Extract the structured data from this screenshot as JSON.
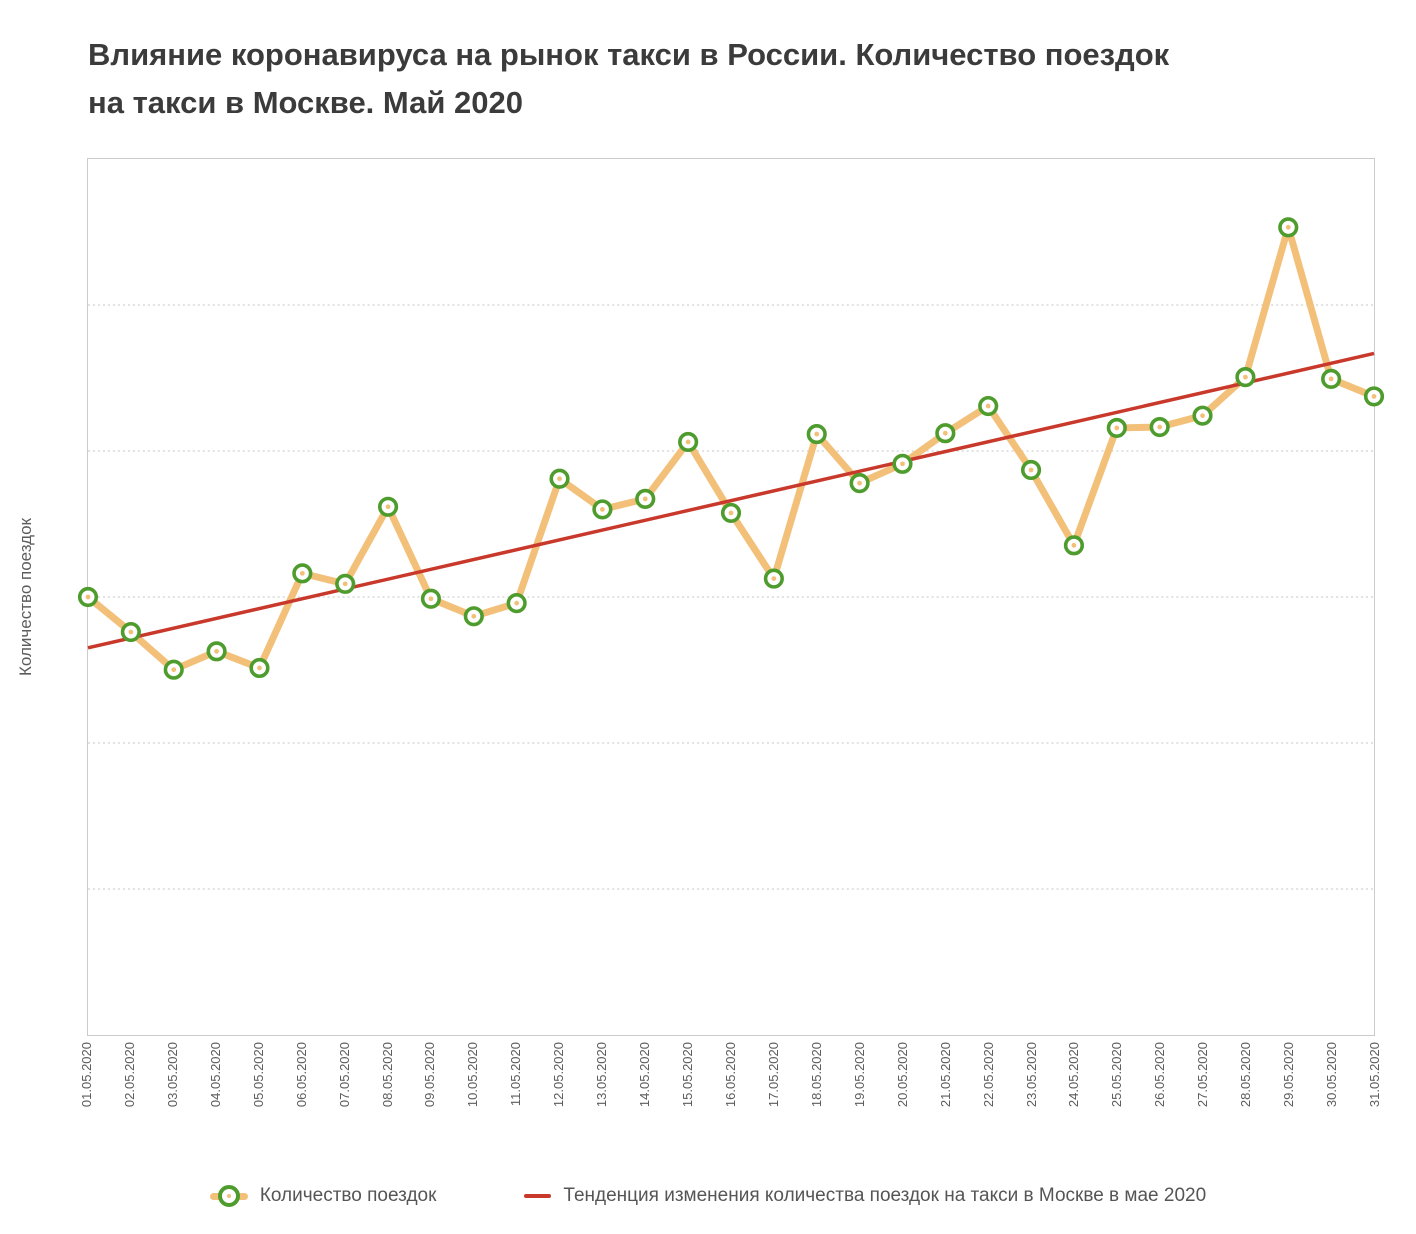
{
  "title": "Влияние коронавируса на рынок такси в России. Количество поездок на такси в Москве. Май 2020",
  "y_axis_label": "Количество поездок",
  "legend": {
    "series_label": "Количество поездок",
    "trend_label": "Тенденция изменения количества поездок на такси в Москве в мае 2020"
  },
  "colors": {
    "series_line": "#F3C07A",
    "marker_stroke": "#4F9C2E",
    "trend_line": "#C9392B",
    "grid": "#C6C6C6",
    "plot_border": "#CBCBCB",
    "title_text": "#3B3B3B",
    "axis_text": "#5C5C5C",
    "legend_text": "#555555"
  },
  "chart_data": {
    "type": "line",
    "title": "Влияние коронавируса на рынок такси в России. Количество поездок на такси в Москве. Май 2020",
    "xlabel": "",
    "ylabel": "Количество поездок",
    "values_scale": "normalized_0_100_no_numeric_axis_labels",
    "grid": {
      "horizontal_gridlines": 5,
      "style": "dotted"
    },
    "legend_position": "bottom",
    "x": [
      "01.05.2020",
      "02.05.2020",
      "03.05.2020",
      "04.05.2020",
      "05.05.2020",
      "06.05.2020",
      "07.05.2020",
      "08.05.2020",
      "09.05.2020",
      "10.05.2020",
      "11.05.2020",
      "12.05.2020",
      "13.05.2020",
      "14.05.2020",
      "15.05.2020",
      "16.05.2020",
      "17.05.2020",
      "18.05.2020",
      "19.05.2020",
      "20.05.2020",
      "21.05.2020",
      "22.05.2020",
      "23.05.2020",
      "24.05.2020",
      "25.05.2020",
      "26.05.2020",
      "27.05.2020",
      "28.05.2020",
      "29.05.2020",
      "30.05.2020",
      "31.05.2020"
    ],
    "series": [
      {
        "name": "Количество поездок",
        "type": "line_with_markers",
        "values": [
          50.0,
          46.0,
          41.7,
          43.8,
          41.9,
          52.7,
          51.5,
          60.3,
          49.8,
          47.8,
          49.3,
          63.5,
          60.0,
          61.2,
          67.7,
          59.6,
          52.1,
          68.6,
          63.0,
          65.2,
          68.7,
          71.8,
          64.5,
          55.9,
          69.3,
          69.4,
          70.7,
          75.1,
          92.2,
          74.9,
          72.9
        ]
      },
      {
        "name": "Тенденция изменения количества поездок на такси в Москве в мае 2020",
        "type": "trend_line",
        "endpoints": [
          44.2,
          77.8
        ]
      }
    ]
  }
}
